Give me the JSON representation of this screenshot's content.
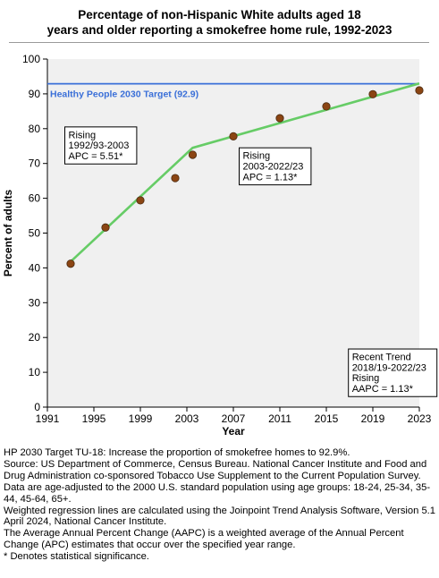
{
  "chart_data": {
    "type": "scatter",
    "title": "Percentage of non-Hispanic White adults aged 18 years and older reporting a smokefree home rule, 1992-2023",
    "xlabel": "Year",
    "ylabel": "Percent of adults",
    "xlim": [
      1991,
      2023
    ],
    "ylim": [
      0,
      100
    ],
    "x_ticks": [
      1991,
      1995,
      1999,
      2003,
      2007,
      2011,
      2015,
      2019,
      2023
    ],
    "y_ticks": [
      0,
      10,
      20,
      30,
      40,
      50,
      60,
      70,
      80,
      90,
      100
    ],
    "grid": false,
    "series": [
      {
        "type": "scatter",
        "color": "#8b4513",
        "points": [
          {
            "x": 1993,
            "y": 41.2
          },
          {
            "x": 1996,
            "y": 51.6
          },
          {
            "x": 1999,
            "y": 59.4
          },
          {
            "x": 2002,
            "y": 65.8
          },
          {
            "x": 2003.5,
            "y": 72.5
          },
          {
            "x": 2007,
            "y": 77.8
          },
          {
            "x": 2011,
            "y": 83.0
          },
          {
            "x": 2015,
            "y": 86.4
          },
          {
            "x": 2019,
            "y": 89.9
          },
          {
            "x": 2023,
            "y": 91.0
          }
        ]
      },
      {
        "type": "line",
        "color": "#66cc66",
        "points": [
          {
            "x": 1993,
            "y": 41.8
          },
          {
            "x": 2003.5,
            "y": 74.5
          },
          {
            "x": 2023,
            "y": 93.0
          }
        ]
      }
    ],
    "target_line": {
      "value": 92.9,
      "label": "Healthy People 2030 Target (92.9)",
      "color": "#3a6fd8"
    },
    "annotations": [
      {
        "lines": [
          "Rising",
          "1992/93-2003",
          "APC =  5.51*"
        ],
        "x": 1992.5,
        "y": 80.5
      },
      {
        "lines": [
          "Rising",
          "2003-2022/23",
          "APC =  1.13*"
        ],
        "x": 2007.5,
        "y": 74.5
      },
      {
        "lines": [
          "Recent Trend",
          "2018/19-2022/23",
          "Rising",
          "AAPC =  1.13*"
        ],
        "x": 2016.9,
        "y": 16.7
      }
    ],
    "plot_background": "#f0f0f0"
  },
  "footnotes": [
    "HP 2030 Target TU-18: Increase the proportion of smokefree homes to 92.9%.",
    "Source: US Department of Commerce, Census Bureau. National Cancer Institute and Food and Drug Administration co-sponsored Tobacco Use Supplement to the Current Population Survey.",
    "Data are age-adjusted to the 2000 U.S. standard population using age groups: 18-24, 25-34, 35-44, 45-64, 65+.",
    "Weighted regression lines are calculated using the Joinpoint Trend Analysis Software, Version 5.1 April 2024, National Cancer Institute.",
    "The Average Annual Percent Change (AAPC) is a weighted average of the Annual Percent Change (APC) estimates that occur over the specified year range.",
    "* Denotes statistical significance."
  ]
}
